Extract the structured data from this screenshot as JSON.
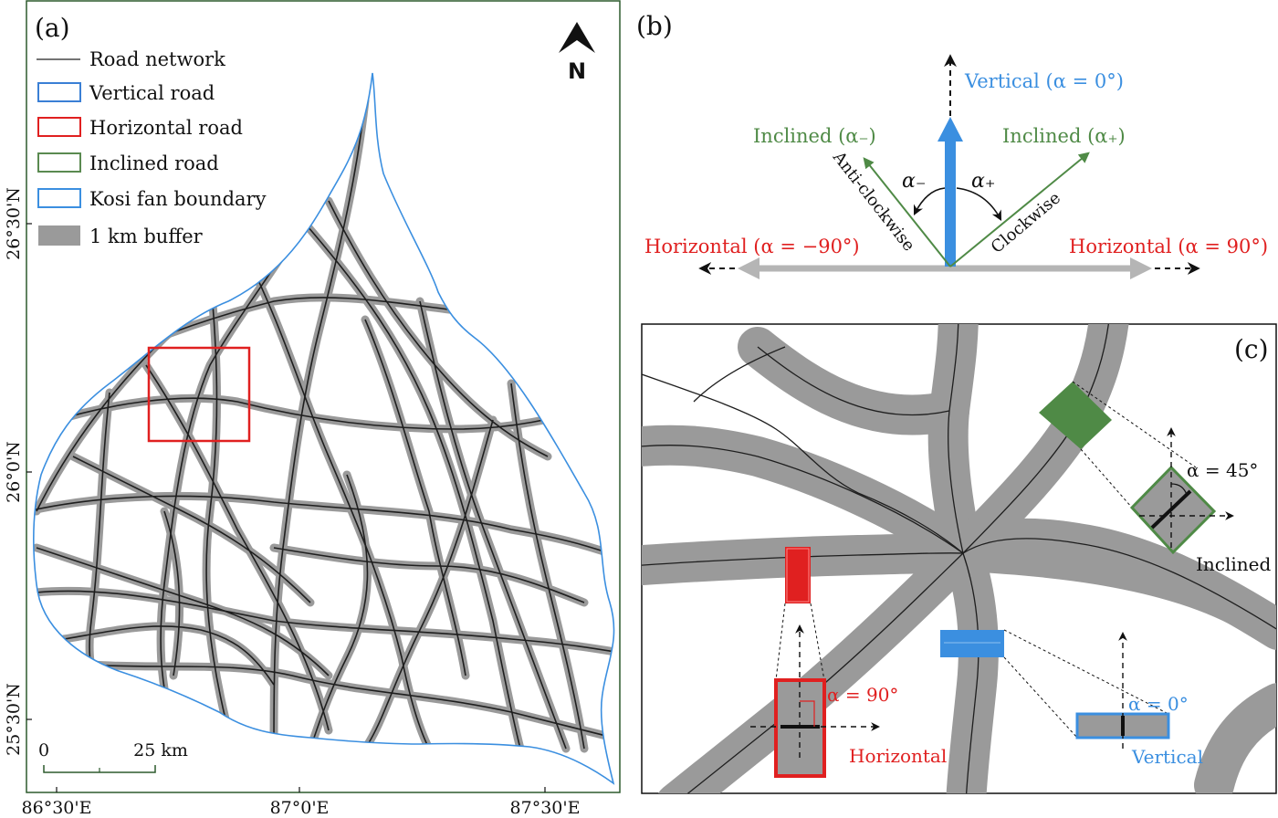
{
  "panel_a": {
    "label": "(a)",
    "legend": [
      {
        "key": "road_network",
        "label": "Road network",
        "color": "#222222"
      },
      {
        "key": "vertical_road",
        "label": "Vertical road",
        "color": "#3a7fd5"
      },
      {
        "key": "horizontal_road",
        "label": "Horizontal road",
        "color": "#e02020"
      },
      {
        "key": "inclined_road",
        "label": "Inclined road",
        "color": "#5a8a50"
      },
      {
        "key": "fan_boundary",
        "label": "Kosi fan boundary",
        "color": "#3b8fe0"
      },
      {
        "key": "buffer",
        "label": "1 km buffer",
        "color": "#9a9a9a"
      }
    ],
    "north": "N",
    "y_ticks": [
      "26°30'N",
      "26°0'N",
      "25°30'N"
    ],
    "x_ticks": [
      "86°30'E",
      "87°0'E",
      "87°30'E"
    ],
    "scalebar": {
      "start": "0",
      "end": "25 km"
    }
  },
  "panel_b": {
    "label": "(b)",
    "vertical": "Vertical (α = 0°)",
    "inclined_minus": "Inclined (α₋)",
    "inclined_plus": "Inclined (α₊)",
    "alpha_minus": "α₋",
    "alpha_plus": "α₊",
    "anticlockwise": "Anti-clockwise",
    "clockwise": "Clockwise",
    "horizontal_left": "Horizontal (α = −90°)",
    "horizontal_right": "Horizontal (α = 90°)"
  },
  "panel_c": {
    "label": "(c)",
    "inclined_angle": "α = 45°",
    "inclined_label": "Inclined",
    "horizontal_angle": "α = 90°",
    "horizontal_label": "Horizontal",
    "vertical_angle": "α = 0°",
    "vertical_label": "Vertical"
  },
  "colors": {
    "blue": "#3b8fe0",
    "red": "#e02020",
    "green": "#4f8a46",
    "grey": "#9a9a9a",
    "frame": "#2d5a2d"
  }
}
